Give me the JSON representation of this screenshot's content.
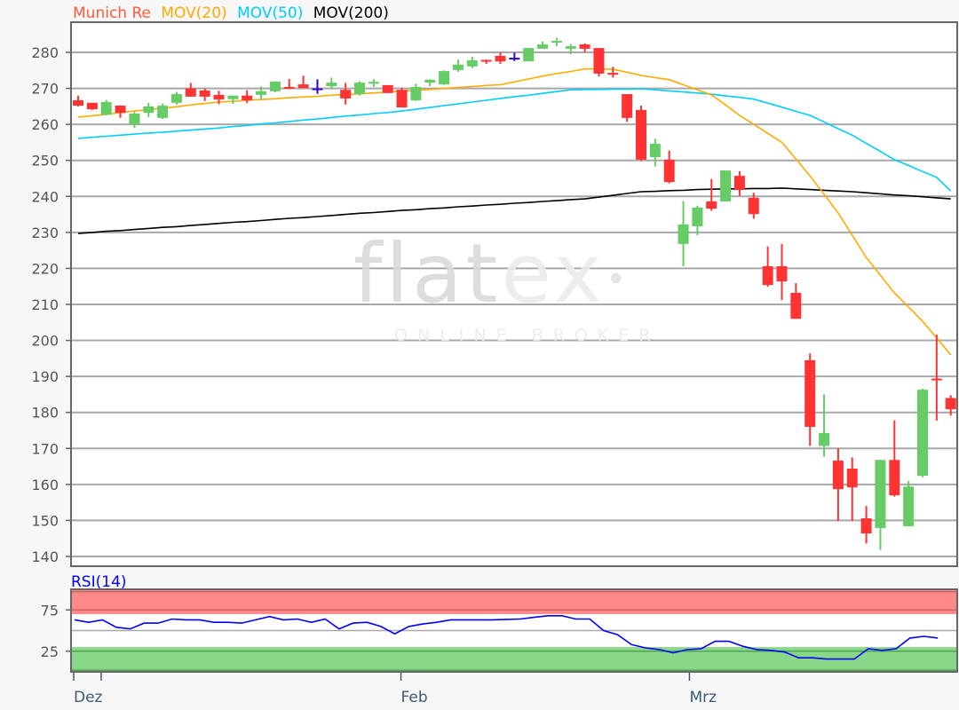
{
  "chart_data": {
    "type": "candlestick",
    "title": {
      "instrument": "Munich Re",
      "ma20_label": "MOV(20)",
      "ma50_label": "MOV(50)",
      "ma200_label": "MOV(200)"
    },
    "colors": {
      "instrument": "#ff5a3c",
      "ma20": "#ffaa00",
      "ma50": "#00ccff",
      "ma200": "#000000",
      "up": "#66cc66",
      "down": "#ff3333",
      "unchanged": "#3300cc",
      "rsi": "#0000ff",
      "overbought_zone": "#ff8888",
      "oversold_zone": "#88d888"
    },
    "ylim": [
      140,
      280
    ],
    "y_ticks": [
      "140",
      "150",
      "160",
      "170",
      "180",
      "190",
      "200",
      "210",
      "220",
      "230",
      "240",
      "250",
      "260",
      "270",
      "280"
    ],
    "x_ticks": [
      {
        "label": "Dez",
        "index": 1.7
      },
      {
        "label": "Feb",
        "index": 23.0
      },
      {
        "label": "Mrz",
        "index": 43.5
      }
    ],
    "grid": true,
    "ohlc": [
      [
        266.7,
        268,
        265,
        265.2
      ],
      [
        266,
        266,
        264,
        264.2
      ],
      [
        262.7,
        266.8,
        262.5,
        266.2
      ],
      [
        265.2,
        265.3,
        261.8,
        263.2
      ],
      [
        260,
        263.5,
        259,
        263
      ],
      [
        263.2,
        266,
        262,
        265
      ],
      [
        261.8,
        265.8,
        261.5,
        265.2
      ],
      [
        266,
        269,
        265.5,
        268.4
      ],
      [
        270,
        271.5,
        267.7,
        267.7
      ],
      [
        269.4,
        270,
        266.5,
        267.7
      ],
      [
        268.2,
        269.3,
        265.6,
        266.9
      ],
      [
        267,
        268,
        265.7,
        268
      ],
      [
        268,
        269.5,
        265.9,
        266.7
      ],
      [
        268.2,
        270.5,
        266.9,
        269.2
      ],
      [
        269.2,
        272,
        268.9,
        271.9
      ],
      [
        270.4,
        272.6,
        269.9,
        269.9
      ],
      [
        271.1,
        273.5,
        270.1,
        270.1
      ],
      [
        270,
        272.5,
        268.5,
        270
      ],
      [
        270.6,
        273,
        269.7,
        271.6
      ],
      [
        269.6,
        271.5,
        265.5,
        267.2
      ],
      [
        268.4,
        272,
        268,
        271.6
      ],
      [
        271.3,
        272.6,
        270.4,
        271.8
      ],
      [
        270.9,
        270.9,
        268.7,
        268.7
      ],
      [
        269.6,
        270.2,
        264.7,
        264.7
      ],
      [
        266.7,
        271.3,
        266.5,
        270.4
      ],
      [
        271.6,
        272.5,
        270.6,
        272.4
      ],
      [
        271.1,
        275,
        271,
        274.8
      ],
      [
        275.1,
        278,
        274.6,
        276.6
      ],
      [
        276.1,
        278.8,
        275.6,
        277.8
      ],
      [
        277.9,
        278,
        276.8,
        277.6
      ],
      [
        279,
        280,
        276.8,
        277.5
      ],
      [
        278.5,
        279.9,
        277.6,
        278.5
      ],
      [
        277.5,
        281.2,
        277.5,
        281.2
      ],
      [
        281,
        283,
        281,
        282.2
      ],
      [
        282.7,
        284,
        281.7,
        283.2
      ],
      [
        281,
        282.3,
        279.5,
        281.7
      ],
      [
        282.2,
        282.5,
        280,
        281
      ],
      [
        281.2,
        281.2,
        273.3,
        274.1
      ],
      [
        274.3,
        276,
        273,
        273.8
      ],
      [
        268.4,
        268.4,
        260.7,
        261.8
      ],
      [
        264,
        265.2,
        249.8,
        250.2
      ],
      [
        250.9,
        256,
        248.3,
        254.6
      ],
      [
        250.2,
        252.7,
        243.6,
        244
      ],
      [
        226.8,
        238.7,
        220.6,
        232.2
      ],
      [
        231.7,
        237.4,
        229.2,
        236.9
      ],
      [
        238.6,
        244.8,
        236,
        236.6
      ],
      [
        238.6,
        247.2,
        238.6,
        247.2
      ],
      [
        245.7,
        247,
        240.1,
        241.8
      ],
      [
        239.6,
        241,
        233.8,
        235.1
      ],
      [
        220.6,
        226.1,
        214.9,
        215.4
      ],
      [
        220.6,
        226.8,
        211.2,
        216.4
      ],
      [
        213.2,
        215.9,
        206,
        206
      ],
      [
        194.5,
        196.4,
        170.7,
        176
      ],
      [
        170.7,
        185,
        167.7,
        174.3
      ],
      [
        166.6,
        170,
        149.8,
        158.7
      ],
      [
        164.4,
        167.5,
        149.8,
        159.2
      ],
      [
        150.6,
        154,
        143.6,
        146.4
      ],
      [
        147.9,
        166.8,
        141.8,
        166.8
      ],
      [
        166.8,
        177.8,
        156.6,
        157
      ],
      [
        148.4,
        161,
        148.4,
        159.4
      ],
      [
        162.4,
        186.6,
        162,
        186.3
      ],
      [
        189.4,
        201.6,
        177.7,
        189
      ],
      [
        184,
        184.8,
        179.1,
        180.9
      ]
    ],
    "ma20": [
      262,
      262.4,
      262.8,
      263.3,
      263.7,
      264.1,
      264.5,
      264.9,
      265.4,
      265.8,
      266.2,
      266.4,
      266.7,
      266.9,
      267.1,
      267.4,
      267.6,
      267.8,
      268.1,
      268.3,
      268.5,
      268.7,
      269,
      269.2,
      269.5,
      269.7,
      270,
      270.3,
      270.5,
      270.8,
      271,
      271.8,
      272.6,
      273.4,
      274.1,
      274.7,
      275.4,
      275.4,
      275.3,
      274.5,
      273.6,
      273,
      272.4,
      271,
      269.6,
      268.2,
      265.4,
      262.5,
      260,
      257.5,
      255,
      250.4,
      245.7,
      240.6,
      235.4,
      229.2,
      223,
      218.1,
      213.2,
      209.3,
      205.3,
      200.7,
      196
    ],
    "ma50": [
      256.1,
      256.4,
      256.7,
      257,
      257.3,
      257.6,
      257.8,
      258.1,
      258.4,
      258.7,
      259,
      259.4,
      259.7,
      260.1,
      260.4,
      260.8,
      261.2,
      261.5,
      261.9,
      262.3,
      262.6,
      263,
      263.3,
      263.7,
      264.2,
      264.7,
      265.2,
      265.7,
      266.2,
      266.7,
      267.2,
      267.7,
      268.1,
      268.6,
      269.1,
      269.6,
      269.7,
      269.7,
      269.8,
      269.8,
      269.9,
      269.6,
      269.3,
      269,
      268.7,
      268.4,
      267.9,
      267.5,
      267,
      265.9,
      264.8,
      263.6,
      262.5,
      260.7,
      258.8,
      257,
      254.7,
      252.5,
      250.2,
      248.6,
      246.9,
      245.3,
      241.5
    ],
    "ma200": [
      229.7,
      230,
      230.3,
      230.5,
      230.8,
      231.1,
      231.4,
      231.6,
      231.9,
      232.2,
      232.5,
      232.8,
      233,
      233.3,
      233.6,
      233.9,
      234.1,
      234.4,
      234.7,
      235,
      235.3,
      235.5,
      235.8,
      236.1,
      236.3,
      236.6,
      236.8,
      237.1,
      237.3,
      237.6,
      237.8,
      238.1,
      238.3,
      238.6,
      238.8,
      239.1,
      239.3,
      239.8,
      240.3,
      240.8,
      241.3,
      241.4,
      241.6,
      241.7,
      241.9,
      242,
      242.1,
      242.1,
      242.2,
      242.2,
      242.3,
      242.1,
      241.9,
      241.7,
      241.5,
      241.3,
      241,
      240.7,
      240.4,
      240.2,
      239.9,
      239.6,
      239.3
    ],
    "rsi": {
      "label": "RSI(14)",
      "ylim": [
        0,
        100
      ],
      "y_ticks": [
        "25",
        "75"
      ],
      "overbought": [
        70,
        100
      ],
      "oversold": [
        0,
        30
      ],
      "values": [
        63,
        60,
        63,
        54,
        52,
        59,
        59,
        64,
        63,
        63,
        60,
        60,
        59,
        63,
        67,
        63,
        64,
        60,
        64,
        52,
        59,
        60,
        55,
        46,
        55,
        58,
        60,
        63,
        63,
        63,
        63,
        63.5,
        64,
        66,
        68,
        68,
        64,
        64,
        50,
        45,
        33,
        29,
        27,
        23,
        27,
        28,
        37,
        37,
        31,
        27,
        26,
        24,
        17,
        17,
        15.5,
        15.5,
        15.5,
        28,
        26,
        28,
        41,
        43,
        41
      ]
    }
  },
  "watermark": {
    "logo": "flatex",
    "tagline": "ONLINE BROKER"
  }
}
